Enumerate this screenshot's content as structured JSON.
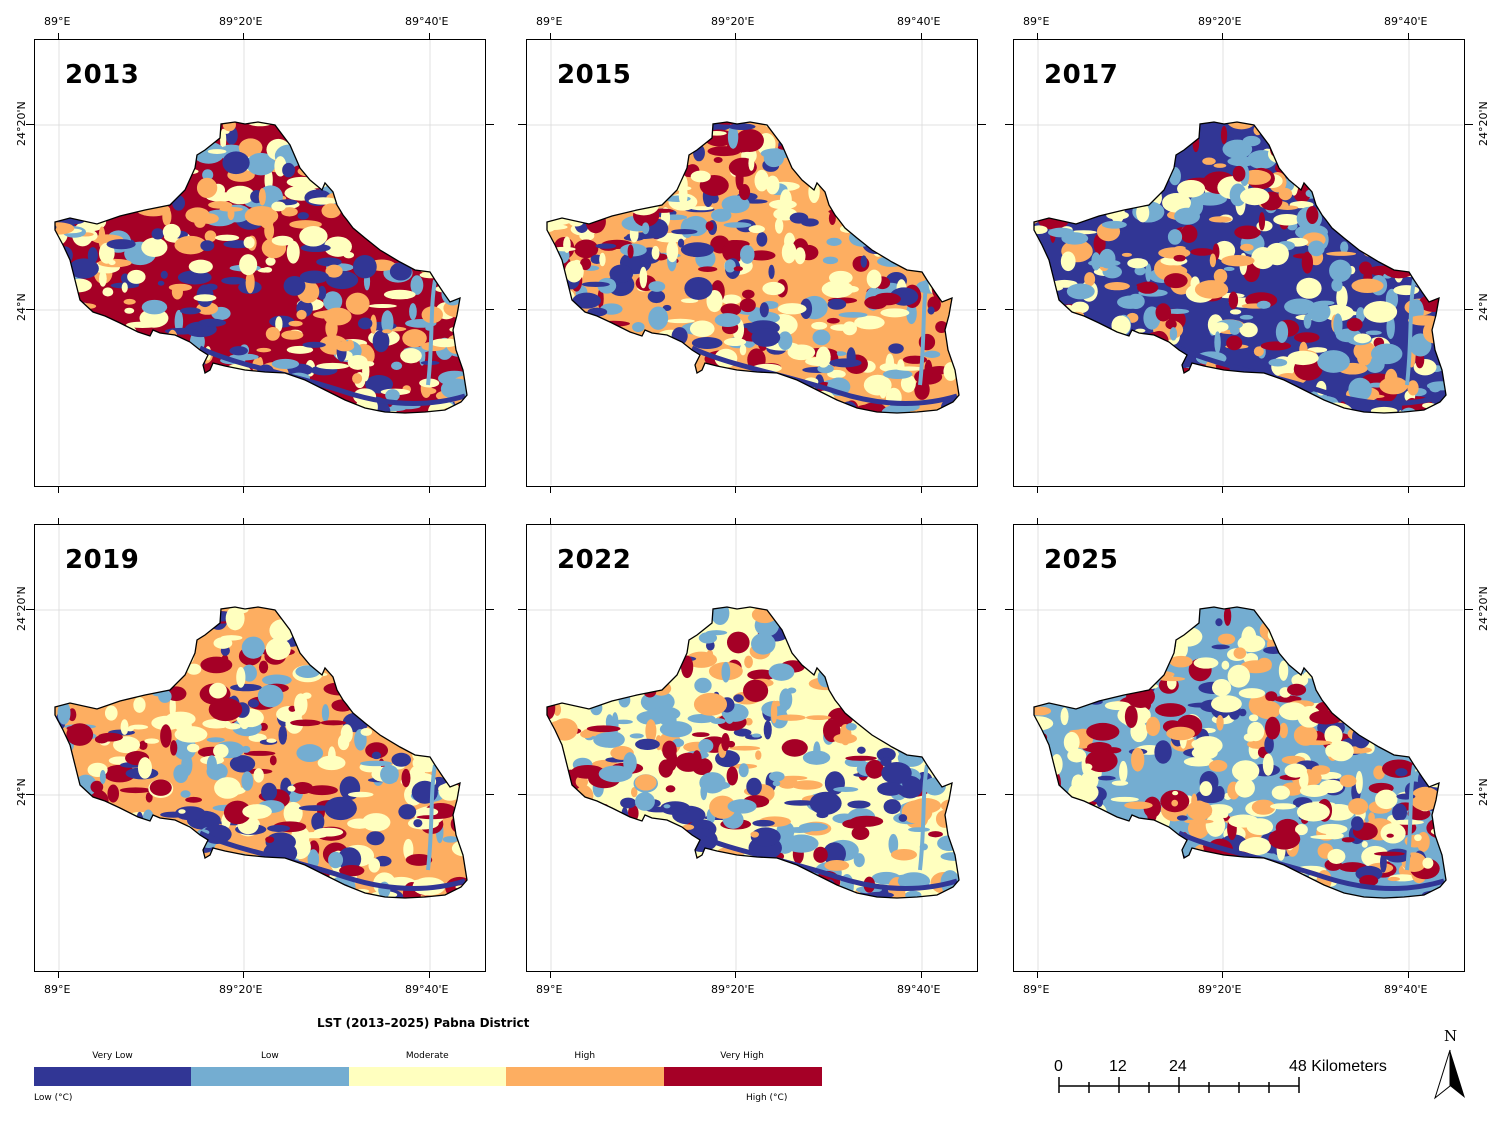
{
  "panels": [
    {
      "year": "2013"
    },
    {
      "year": "2015"
    },
    {
      "year": "2017"
    },
    {
      "year": "2019"
    },
    {
      "year": "2022"
    },
    {
      "year": "2025"
    }
  ],
  "axes": {
    "lon_labels": [
      "89°E",
      "89°20'E",
      "89°40'E"
    ],
    "lat_labels": [
      "24°20'N",
      "24°N"
    ]
  },
  "legend": {
    "title": "LST (2013–2025) Pabna District",
    "classes": [
      {
        "label": "Very Low",
        "color": "#313695"
      },
      {
        "label": "Low",
        "color": "#74add1"
      },
      {
        "label": "Moderate",
        "color": "#ffffbf"
      },
      {
        "label": "High",
        "color": "#fdae61"
      },
      {
        "label": "Very High",
        "color": "#a50026"
      }
    ],
    "low_label": "Low (°C)",
    "high_label": "High (°C)"
  },
  "scale_bar": {
    "ticks": [
      "0",
      "12",
      "24",
      "48 Kilometers"
    ]
  },
  "north_arrow": {
    "label": "N"
  },
  "dominant_classes": {
    "2013": [
      "#a50026",
      "#fdae61",
      "#ffffbf",
      "#74add1",
      "#313695"
    ],
    "2015": [
      "#fdae61",
      "#ffffbf",
      "#a50026",
      "#74add1",
      "#313695"
    ],
    "2017": [
      "#313695",
      "#74add1",
      "#ffffbf",
      "#fdae61",
      "#a50026"
    ],
    "2019": [
      "#fdae61",
      "#ffffbf",
      "#a50026",
      "#74add1",
      "#313695"
    ],
    "2022": [
      "#ffffbf",
      "#74add1",
      "#fdae61",
      "#a50026",
      "#313695"
    ],
    "2025": [
      "#74add1",
      "#ffffbf",
      "#fdae61",
      "#313695",
      "#a50026"
    ]
  }
}
